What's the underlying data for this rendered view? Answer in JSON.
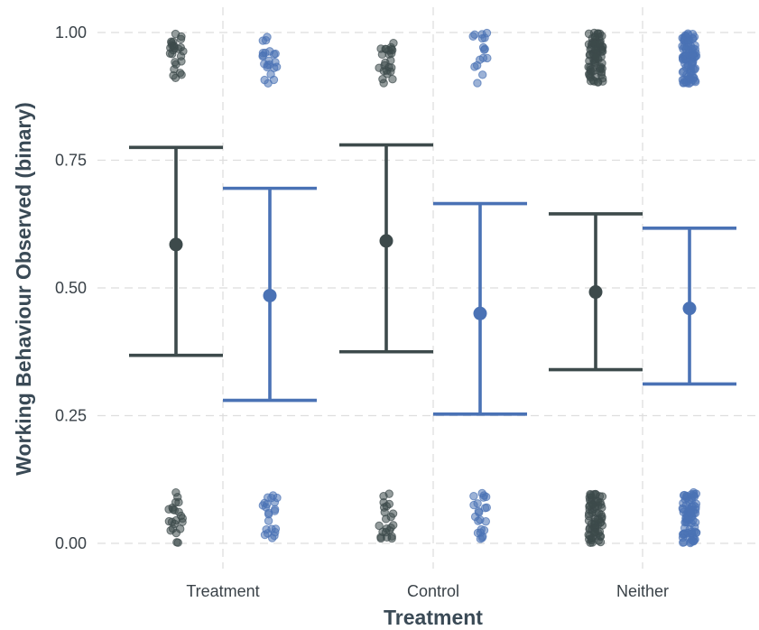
{
  "chart_data": {
    "type": "scatter",
    "xlabel": "Treatment",
    "ylabel": "Working Behaviour Observed (binary)",
    "categories": [
      "Treatment",
      "Control",
      "Neither"
    ],
    "ylim": [
      0,
      1
    ],
    "yticks": [
      0.0,
      0.25,
      0.5,
      0.75,
      1.0
    ],
    "ytick_labels": [
      "0.00",
      "0.25",
      "0.50",
      "0.75",
      "1.00"
    ],
    "grid": true,
    "colors": {
      "series_a": "#3d4a4b",
      "series_b": "#4a72b5"
    },
    "series": [
      {
        "color": "#3d4a4b",
        "mean": [
          0.585,
          0.592,
          0.492
        ],
        "ci_low": [
          0.368,
          0.375,
          0.34
        ],
        "ci_high": [
          0.775,
          0.78,
          0.645
        ],
        "jitter_counts_low": [
          22,
          22,
          70
        ],
        "jitter_counts_high": [
          26,
          24,
          80
        ]
      },
      {
        "color": "#4a72b5",
        "mean": [
          0.485,
          0.45,
          0.46
        ],
        "ci_low": [
          0.28,
          0.253,
          0.312
        ],
        "ci_high": [
          0.695,
          0.665,
          0.617
        ],
        "jitter_counts_low": [
          22,
          22,
          80
        ],
        "jitter_counts_high": [
          22,
          16,
          90
        ]
      }
    ]
  }
}
